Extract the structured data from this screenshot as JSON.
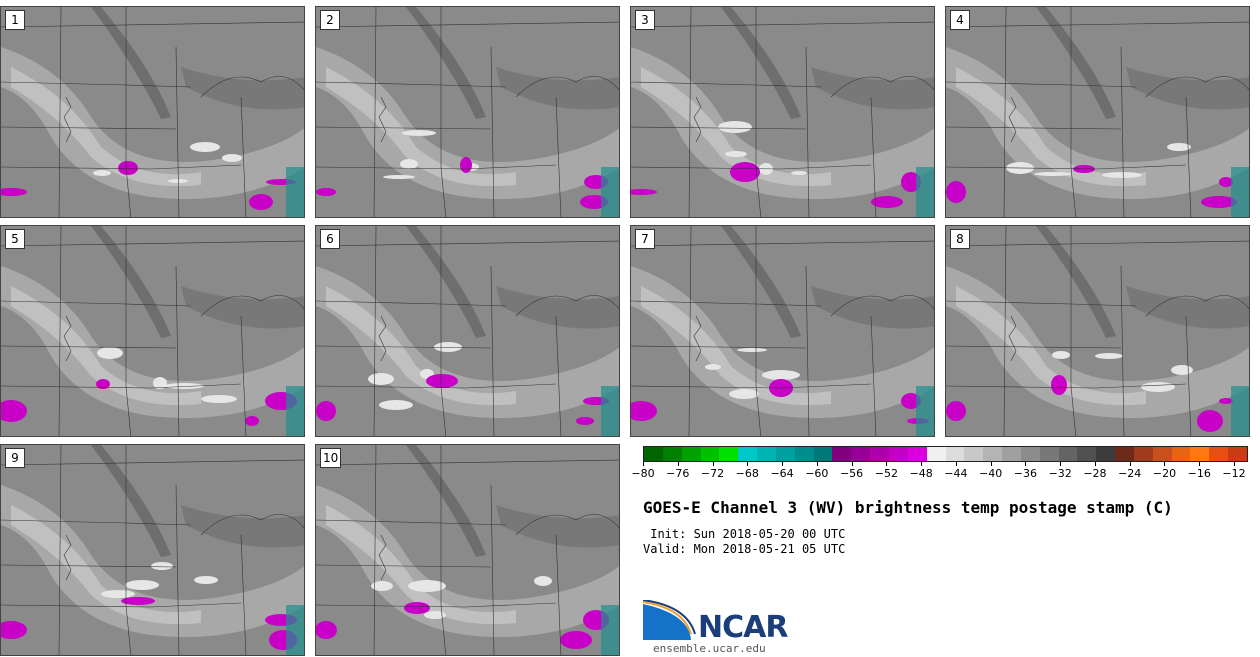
{
  "panels": [
    "1",
    "2",
    "3",
    "4",
    "5",
    "6",
    "7",
    "8",
    "9",
    "10"
  ],
  "colorbar": {
    "colors": [
      "#006400",
      "#008000",
      "#00a000",
      "#00c000",
      "#00e000",
      "#00c8c8",
      "#00b4b4",
      "#00a0a0",
      "#008c8c",
      "#007878",
      "#800080",
      "#960096",
      "#ad00ad",
      "#c400c4",
      "#db00db",
      "#f0f0f0",
      "#dcdcdc",
      "#c8c8c8",
      "#b4b4b4",
      "#a0a0a0",
      "#8c8c8c",
      "#787878",
      "#646464",
      "#505050",
      "#3c3c3c",
      "#6e2a18",
      "#a03c1e",
      "#c8501e",
      "#e66414",
      "#ff7814",
      "#e65014",
      "#c83c14"
    ],
    "tick_labels": [
      "−80",
      "−76",
      "−72",
      "−68",
      "−64",
      "−60",
      "−56",
      "−52",
      "−48",
      "−44",
      "−40",
      "−36",
      "−32",
      "−28",
      "−24",
      "−20",
      "−16",
      "−12"
    ],
    "min": -80,
    "max": -10
  },
  "title": "GOES-E Channel 3 (WV) brightness temp postage stamp (C)",
  "init": " Init: Sun 2018-05-20 00 UTC",
  "valid": "Valid: Mon 2018-05-21 05 UTC",
  "logo_text": "NCAR",
  "url": "ensemble.ucar.edu"
}
